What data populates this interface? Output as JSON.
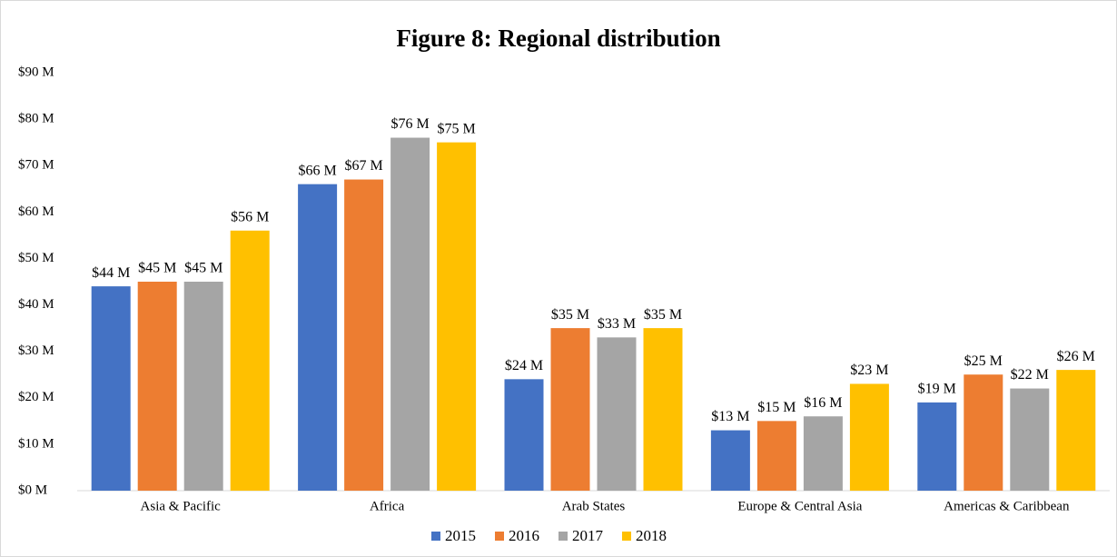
{
  "chart_data": {
    "type": "bar",
    "title": "Figure 8:  Regional distribution",
    "categories": [
      "Asia & Pacific",
      "Africa",
      "Arab States",
      "Europe & Central Asia",
      "Americas & Caribbean"
    ],
    "series": [
      {
        "name": "2015",
        "color": "#4472c4",
        "values": [
          44,
          66,
          24,
          13,
          19
        ],
        "value_labels": [
          "$44 M",
          "$66 M",
          "$24 M",
          "$13 M",
          "$19 M"
        ]
      },
      {
        "name": "2016",
        "color": "#ed7d31",
        "values": [
          45,
          67,
          35,
          15,
          25
        ],
        "value_labels": [
          "$45 M",
          "$67 M",
          "$35 M",
          "$15 M",
          "$25 M"
        ]
      },
      {
        "name": "2017",
        "color": "#a5a5a5",
        "values": [
          45,
          76,
          33,
          16,
          22
        ],
        "value_labels": [
          "$45 M",
          "$76 M",
          "$33 M",
          "$16 M",
          "$22 M"
        ]
      },
      {
        "name": "2018",
        "color": "#ffc000",
        "values": [
          56,
          75,
          35,
          23,
          26
        ],
        "value_labels": [
          "$56 M",
          "$75 M",
          "$35 M",
          "$23 M",
          "$26 M"
        ]
      }
    ],
    "ylim": [
      0,
      90
    ],
    "yticks": [
      {
        "value": 0,
        "label": "$0 M"
      },
      {
        "value": 10,
        "label": "$10 M"
      },
      {
        "value": 20,
        "label": "$20 M"
      },
      {
        "value": 30,
        "label": "$30 M"
      },
      {
        "value": 40,
        "label": "$40 M"
      },
      {
        "value": 50,
        "label": "$50 M"
      },
      {
        "value": 60,
        "label": "$60 M"
      },
      {
        "value": 70,
        "label": "$70 M"
      },
      {
        "value": 80,
        "label": "$80 M"
      },
      {
        "value": 90,
        "label": "$90 M"
      }
    ],
    "legend": "bottom"
  }
}
